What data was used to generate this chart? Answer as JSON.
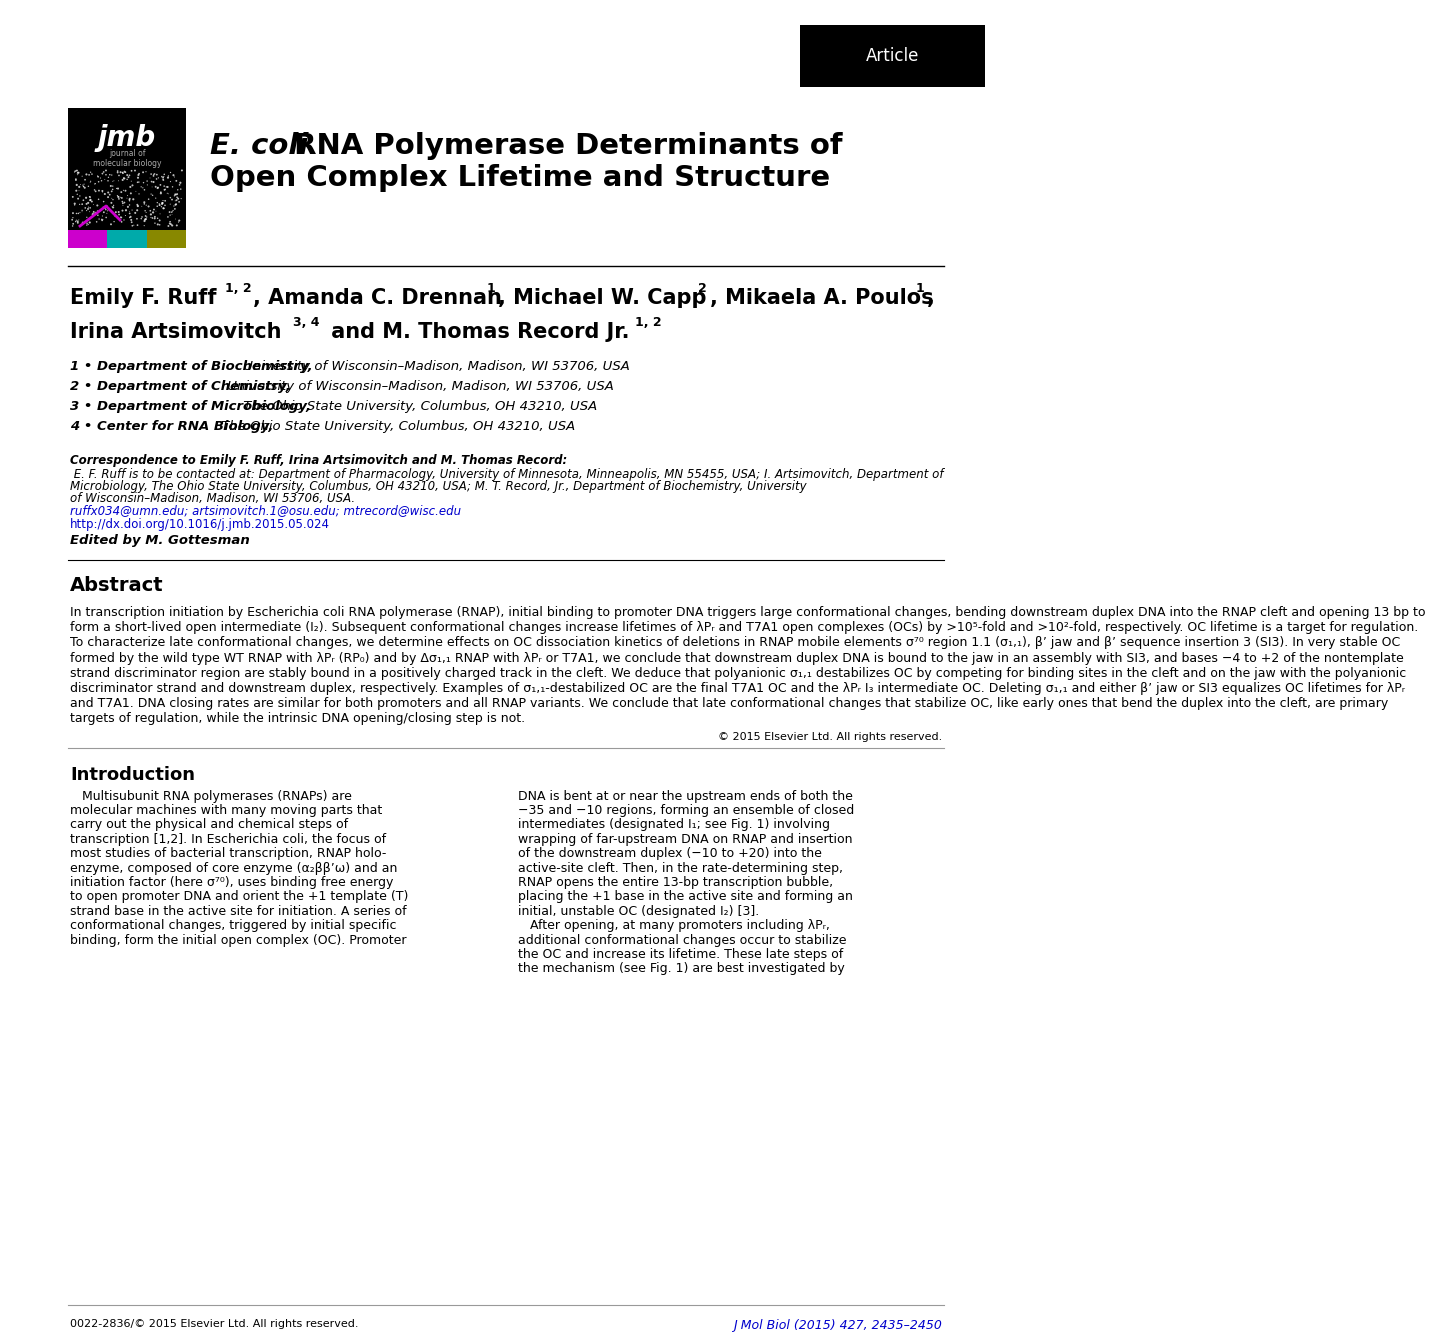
{
  "bg_color": "#ffffff",
  "article_tag": "Article",
  "article_tag_bg": "#000000",
  "article_tag_color": "#ffffff",
  "title_italic_part": "E. coli",
  "title_bold_line1": " RNA Polymerase Determinants of",
  "title_bold_line2": "Open Complex Lifetime and Structure",
  "affiliations": [
    [
      "1 • ",
      "Department of Biochemistry,",
      " University of Wisconsin–Madison, Madison, WI 53706, USA"
    ],
    [
      "2 • ",
      "Department of Chemistry,",
      " University of Wisconsin–Madison, Madison, WI 53706, USA"
    ],
    [
      "3 • ",
      "Department of Microbiology,",
      " The Ohio State University, Columbus, OH 43210, USA"
    ],
    [
      "4 • ",
      "Center for RNA Biology,",
      " The Ohio State University, Columbus, OH 43210, USA"
    ]
  ],
  "corr_bold": "Correspondence to Emily F. Ruff, Irina Artsimovitch and M. Thomas Record:",
  "corr_italic_lines": [
    " E. F. Ruff is to be contacted at: Department of Pharmacology, University of Minnesota, Minneapolis, MN 55455, USA; I. Artsimovitch, Department of",
    "Microbiology, The Ohio State University, Columbus, OH 43210, USA; M. T. Record, Jr., Department of Biochemistry, University",
    "of Wisconsin–Madison, Madison, WI 53706, USA."
  ],
  "email_line": "ruffx034@umn.edu; artsimovitch.1@osu.edu; mtrecord@wisc.edu",
  "doi_line": "http://dx.doi.org/10.1016/j.jmb.2015.05.024",
  "edited_by": "Edited by M. Gottesman",
  "abstract_title": "Abstract",
  "abstract_lines": [
    "In transcription initiation by Escherichia coli RNA polymerase (RNAP), initial binding to promoter DNA triggers large conformational changes, bending downstream duplex DNA into the RNAP cleft and opening 13 bp to",
    "form a short-lived open intermediate (I₂). Subsequent conformational changes increase lifetimes of λPᵣ and T7A1 open complexes (OCs) by >10⁵-fold and >10²-fold, respectively. OC lifetime is a target for regulation.",
    "To characterize late conformational changes, we determine effects on OC dissociation kinetics of deletions in RNAP mobile elements σ⁷⁰ region 1.1 (σ₁,₁), β’ jaw and β’ sequence insertion 3 (SI3). In very stable OC",
    "formed by the wild type WT RNAP with λPᵣ (RP₀) and by Δσ₁,₁ RNAP with λPᵣ or T7A1, we conclude that downstream duplex DNA is bound to the jaw in an assembly with SI3, and bases −4 to +2 of the nontemplate",
    "strand discriminator region are stably bound in a positively charged track in the cleft. We deduce that polyanionic σ₁,₁ destabilizes OC by competing for binding sites in the cleft and on the jaw with the polyanionic",
    "discriminator strand and downstream duplex, respectively. Examples of σ₁,₁-destabilized OC are the final T7A1 OC and the λPᵣ I₃ intermediate OC. Deleting σ₁,₁ and either β’ jaw or SI3 equalizes OC lifetimes for λPᵣ",
    "and T7A1. DNA closing rates are similar for both promoters and all RNAP variants. We conclude that late conformational changes that stabilize OC, like early ones that bend the duplex into the cleft, are primary",
    "targets of regulation, while the intrinsic DNA opening/closing step is not."
  ],
  "copyright": "© 2015 Elsevier Ltd. All rights reserved.",
  "intro_title": "Introduction",
  "intro_col1_lines": [
    "   Multisubunit RNA polymerases (RNAPs) are",
    "molecular machines with many moving parts that",
    "carry out the physical and chemical steps of",
    "transcription [1,2]. In Escherichia coli, the focus of",
    "most studies of bacterial transcription, RNAP holo-",
    "enzyme, composed of core enzyme (α₂ββ’ω) and an",
    "initiation factor (here σ⁷⁰), uses binding free energy",
    "to open promoter DNA and orient the +1 template (T)",
    "strand base in the active site for initiation. A series of",
    "conformational changes, triggered by initial specific",
    "binding, form the initial open complex (OC). Promoter"
  ],
  "intro_col2_lines": [
    "DNA is bent at or near the upstream ends of both the",
    "−35 and −10 regions, forming an ensemble of closed",
    "intermediates (designated I₁; see Fig. 1) involving",
    "wrapping of far-upstream DNA on RNAP and insertion",
    "of the downstream duplex (−10 to +20) into the",
    "active-site cleft. Then, in the rate-determining step,",
    "RNAP opens the entire 13-bp transcription bubble,",
    "placing the +1 base in the active site and forming an",
    "initial, unstable OC (designated I₂) [3].",
    "   After opening, at many promoters including λPᵣ,",
    "additional conformational changes occur to stabilize",
    "the OC and increase its lifetime. These late steps of",
    "the mechanism (see Fig. 1) are best investigated by"
  ],
  "footer_left": "0022-2836/© 2015 Elsevier Ltd. All rights reserved.",
  "footer_right": "J Mol Biol (2015) 427, 2435–2450",
  "link_color": "#0000cc",
  "separator_color": "#999999"
}
